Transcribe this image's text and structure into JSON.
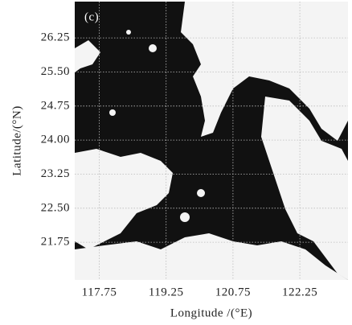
{
  "chart_data": {
    "type": "map",
    "panel_label": "(c)",
    "xlabel": "Longitude /(°E)",
    "ylabel": "Latitude/(°N)",
    "xlim": [
      117.2,
      123.33
    ],
    "ylim": [
      20.92,
      27.05
    ],
    "xticks": [
      117.75,
      119.25,
      120.75,
      122.25
    ],
    "yticks": [
      26.25,
      {
        "value": 25.5,
        "label": "25.50"
      },
      24.75,
      {
        "value": 24,
        "label": "24.00"
      },
      23.25,
      {
        "value": 22.5,
        "label": "22.50"
      },
      21.75
    ],
    "grid": true
  }
}
